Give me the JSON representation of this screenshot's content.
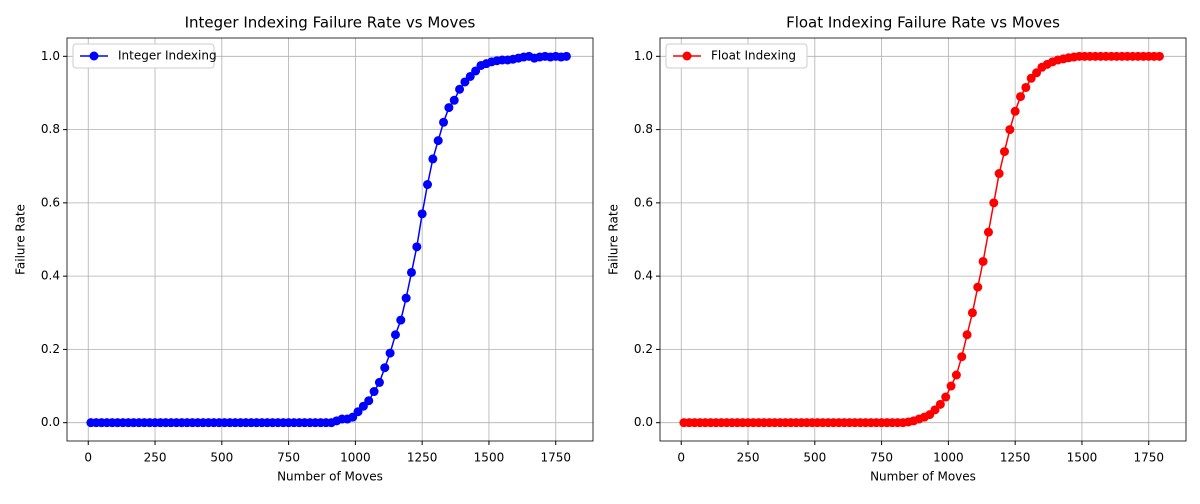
{
  "chart_data": [
    {
      "type": "line",
      "title": "Integer Indexing Failure Rate vs Moves",
      "xlabel": "Number of Moves",
      "ylabel": "Failure Rate",
      "x": [
        10,
        30,
        50,
        70,
        90,
        110,
        130,
        150,
        170,
        190,
        210,
        230,
        250,
        270,
        290,
        310,
        330,
        350,
        370,
        390,
        410,
        430,
        450,
        470,
        490,
        510,
        530,
        550,
        570,
        590,
        610,
        630,
        650,
        670,
        690,
        710,
        730,
        750,
        770,
        790,
        810,
        830,
        850,
        870,
        890,
        910,
        930,
        950,
        970,
        990,
        1010,
        1030,
        1050,
        1070,
        1090,
        1110,
        1130,
        1150,
        1170,
        1190,
        1210,
        1230,
        1250,
        1270,
        1290,
        1310,
        1330,
        1350,
        1370,
        1390,
        1410,
        1430,
        1450,
        1470,
        1490,
        1510,
        1530,
        1550,
        1570,
        1590,
        1610,
        1630,
        1650,
        1670,
        1690,
        1710,
        1730,
        1750,
        1770,
        1790
      ],
      "series": [
        {
          "name": "Integer Indexing",
          "color": "#0000ff",
          "values": [
            0,
            0,
            0,
            0,
            0,
            0,
            0,
            0,
            0,
            0,
            0,
            0,
            0,
            0,
            0,
            0,
            0,
            0,
            0,
            0,
            0,
            0,
            0,
            0,
            0,
            0,
            0,
            0,
            0,
            0,
            0,
            0,
            0,
            0,
            0,
            0,
            0,
            0,
            0,
            0,
            0,
            0,
            0,
            0,
            0,
            0,
            0.005,
            0.01,
            0.01,
            0.015,
            0.03,
            0.045,
            0.06,
            0.085,
            0.11,
            0.15,
            0.19,
            0.24,
            0.28,
            0.34,
            0.41,
            0.48,
            0.57,
            0.65,
            0.72,
            0.77,
            0.82,
            0.86,
            0.88,
            0.91,
            0.93,
            0.945,
            0.96,
            0.975,
            0.98,
            0.985,
            0.988,
            0.99,
            0.99,
            0.992,
            0.995,
            0.998,
            1.0,
            0.995,
            0.998,
            1.0,
            0.998,
            1.0,
            0.998,
            1.0
          ]
        }
      ],
      "xlim": [
        -79.5,
        1889.5
      ],
      "xticks": [
        0,
        250,
        500,
        750,
        1000,
        1250,
        1500,
        1750
      ],
      "ylim": [
        -0.05,
        1.05
      ],
      "yticks": [
        {
          "value": 0,
          "label": "0.0"
        },
        {
          "value": 0.2,
          "label": "0.2"
        },
        {
          "value": 0.4,
          "label": "0.4"
        },
        {
          "value": 0.6,
          "label": "0.6"
        },
        {
          "value": 0.8,
          "label": "0.8"
        },
        {
          "value": 1,
          "label": "1.0"
        }
      ],
      "grid": true,
      "legend": "upper-left"
    },
    {
      "type": "line",
      "title": "Float Indexing Failure Rate vs Moves",
      "xlabel": "Number of Moves",
      "ylabel": "Failure Rate",
      "x": [
        10,
        30,
        50,
        70,
        90,
        110,
        130,
        150,
        170,
        190,
        210,
        230,
        250,
        270,
        290,
        310,
        330,
        350,
        370,
        390,
        410,
        430,
        450,
        470,
        490,
        510,
        530,
        550,
        570,
        590,
        610,
        630,
        650,
        670,
        690,
        710,
        730,
        750,
        770,
        790,
        810,
        830,
        850,
        870,
        890,
        910,
        930,
        950,
        970,
        990,
        1010,
        1030,
        1050,
        1070,
        1090,
        1110,
        1130,
        1150,
        1170,
        1190,
        1210,
        1230,
        1250,
        1270,
        1290,
        1310,
        1330,
        1350,
        1370,
        1390,
        1410,
        1430,
        1450,
        1470,
        1490,
        1510,
        1530,
        1550,
        1570,
        1590,
        1610,
        1630,
        1650,
        1670,
        1690,
        1710,
        1730,
        1750,
        1770,
        1790
      ],
      "series": [
        {
          "name": "Float Indexing",
          "color": "#ff0000",
          "values": [
            0,
            0,
            0,
            0,
            0,
            0,
            0,
            0,
            0,
            0,
            0,
            0,
            0,
            0,
            0,
            0,
            0,
            0,
            0,
            0,
            0,
            0,
            0,
            0,
            0,
            0,
            0,
            0,
            0,
            0,
            0,
            0,
            0,
            0,
            0,
            0,
            0,
            0,
            0,
            0,
            0,
            0,
            0.002,
            0.005,
            0.01,
            0.015,
            0.022,
            0.035,
            0.05,
            0.07,
            0.1,
            0.13,
            0.18,
            0.24,
            0.3,
            0.37,
            0.44,
            0.52,
            0.6,
            0.68,
            0.74,
            0.8,
            0.85,
            0.89,
            0.915,
            0.94,
            0.955,
            0.97,
            0.978,
            0.985,
            0.99,
            0.993,
            0.996,
            0.998,
            1,
            1,
            1,
            1,
            1,
            1,
            1,
            1,
            1,
            1,
            1,
            1,
            1,
            1,
            1,
            1
          ]
        }
      ],
      "xlim": [
        -79.5,
        1889.5
      ],
      "xticks": [
        0,
        250,
        500,
        750,
        1000,
        1250,
        1500,
        1750
      ],
      "ylim": [
        -0.05,
        1.05
      ],
      "yticks": [
        {
          "value": 0,
          "label": "0.0"
        },
        {
          "value": 0.2,
          "label": "0.2"
        },
        {
          "value": 0.4,
          "label": "0.4"
        },
        {
          "value": 0.6,
          "label": "0.6"
        },
        {
          "value": 0.8,
          "label": "0.8"
        },
        {
          "value": 1,
          "label": "1.0"
        }
      ],
      "grid": true,
      "legend": "upper-left"
    }
  ]
}
